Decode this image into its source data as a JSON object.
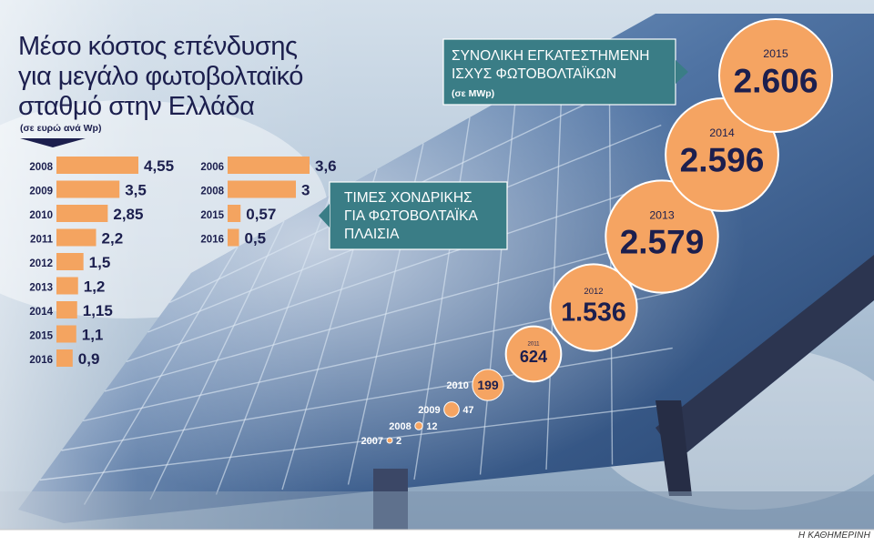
{
  "title": {
    "line1": "Μέσο κόστος επένδυσης",
    "line2": "για μεγάλο φωτοβολταϊκό",
    "line3": "σταθμό στην Ελλάδα",
    "unit": "(σε ευρώ ανά Wp)"
  },
  "credit": "Η ΚΑΘΗΜΕΡΙΝΗ",
  "colors": {
    "bar": "#f4a460",
    "bubble": "#f5a462",
    "bubble_stroke": "#ffffff",
    "navy": "#1c1f4e",
    "box": "#3a7d86",
    "sky_top": "#cbd9e6",
    "sky_bottom": "#8ea7bf",
    "panel_dark": "#2e4c7a",
    "panel_light": "#6d8fb8",
    "frame": "#2c3550"
  },
  "chart_data": [
    {
      "type": "bar",
      "title": "Μέσο κόστος επένδυσης για μεγάλο φωτοβολταϊκό σταθμό στην Ελλάδα",
      "unit": "(σε ευρώ ανά Wp)",
      "orientation": "horizontal",
      "categories": [
        "2008",
        "2009",
        "2010",
        "2011",
        "2012",
        "2013",
        "2014",
        "2015",
        "2016"
      ],
      "values": [
        4.55,
        3.5,
        2.85,
        2.2,
        1.5,
        1.2,
        1.15,
        1.1,
        0.9
      ],
      "labels": [
        "4,55",
        "3,5",
        "2,85",
        "2,2",
        "1,5",
        "1,2",
        "1,15",
        "1,1",
        "0,9"
      ],
      "xlim": [
        0,
        4.55
      ],
      "grid": false
    },
    {
      "type": "bar",
      "title": "ΤΙΜΕΣ ΧΟΝΔΡΙΚΗΣ ΓΙΑ ΦΩΤΟΒΟΛΤΑΪΚΑ ΠΛΑΙΣΙΑ",
      "title_lines": [
        "ΤΙΜΕΣ ΧΟΝΔΡΙΚΗΣ",
        "ΓΙΑ ΦΩΤΟΒΟΛΤΑΪΚΑ",
        "ΠΛΑΙΣΙΑ"
      ],
      "orientation": "horizontal",
      "categories": [
        "2006",
        "2008",
        "2015",
        "2016"
      ],
      "values": [
        3.6,
        3,
        0.57,
        0.5
      ],
      "labels": [
        "3,6",
        "3",
        "0,57",
        "0,5"
      ],
      "xlim": [
        0,
        3.6
      ],
      "grid": false
    },
    {
      "type": "scatter",
      "title": "ΣΥΝΟΛΙΚΗ ΕΓΚΑΤΕΣΤΗΜΕΝΗ ΙΣΧΥΣ ΦΩΤΟΒΟΛΤΑΪΚΩΝ",
      "title_lines": [
        "ΣΥΝΟΛΙΚΗ ΕΓΚΑΤΕΣΤΗΜΕΝΗ",
        "ΙΣΧΥΣ ΦΩΤΟΒΟΛΤΑΪΚΩΝ"
      ],
      "unit": "(σε MWp)",
      "encoding": "bubble size proportional to value",
      "x": [
        "2007",
        "2008",
        "2009",
        "2010",
        "2011",
        "2012",
        "2013",
        "2014",
        "2015"
      ],
      "values": [
        2,
        12,
        47,
        199,
        624,
        1536,
        2579,
        2596,
        2606
      ],
      "labels": [
        "2",
        "12",
        "47",
        "199",
        "624",
        "1.536",
        "2.579",
        "2.596",
        "2.606"
      ],
      "grid": false
    }
  ]
}
